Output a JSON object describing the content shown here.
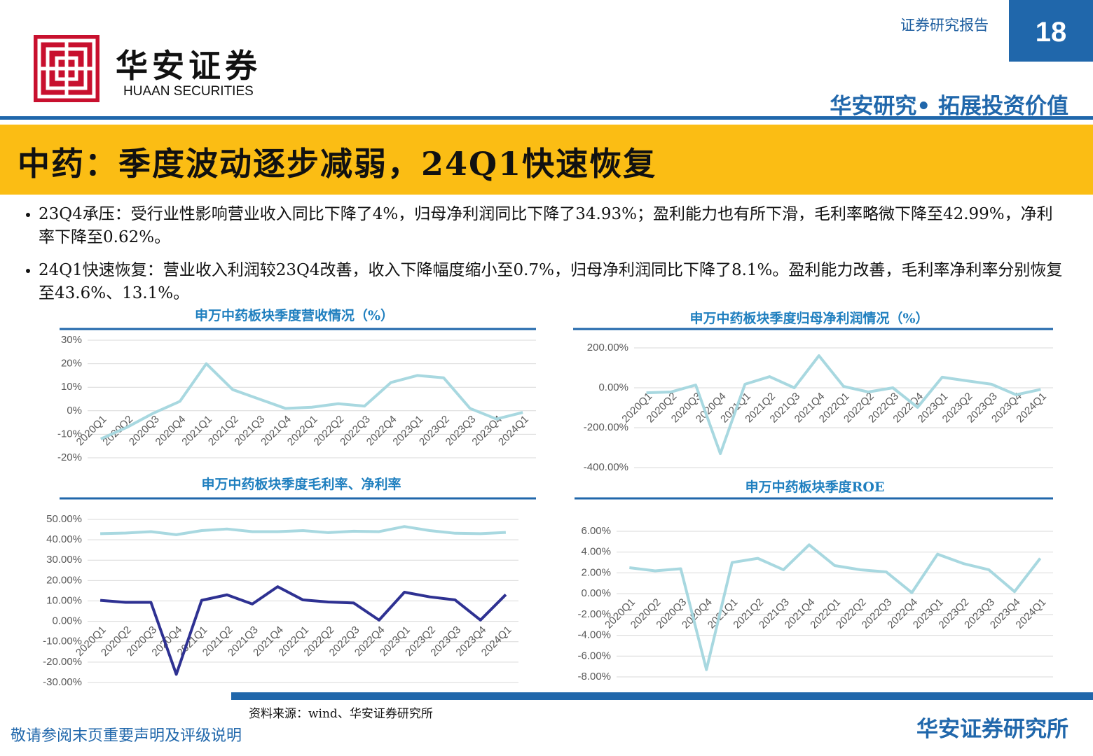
{
  "header": {
    "report_type": "证券研究报告",
    "page": "18",
    "logo_cn": "华安证券",
    "logo_en": "HUAAN SECURITIES",
    "slogan": "华安研究• 拓展投资价值"
  },
  "title": "中药：季度波动逐步减弱，24Q1快速恢复",
  "bullets": [
    "23Q4承压：受行业性影响营业收入同比下降了4%，归母净利润同比下降了34.93%；盈利能力也有所下滑，毛利率略微下降至42.99%，净利率下降至0.62%。",
    "24Q1快速恢复：营业收入利润较23Q4改善，收入下降幅度缩小至0.7%，归母净利润同比下降了8.1%。盈利能力改善，毛利率净利率分别恢复至43.6%、13.1%。"
  ],
  "chart_data": [
    {
      "type": "line",
      "title": "申万中药板块季度营收情况（%）",
      "grid": true,
      "categories": [
        "2020Q1",
        "2020Q2",
        "2020Q3",
        "2020Q4",
        "2021Q1",
        "2021Q2",
        "2021Q3",
        "2021Q4",
        "2022Q1",
        "2022Q2",
        "2022Q3",
        "2022Q4",
        "2023Q1",
        "2023Q2",
        "2023Q3",
        "2023Q4",
        "2024Q1"
      ],
      "series": [
        {
          "color": "#a8d8e0",
          "values": [
            -12,
            -7,
            -1,
            4,
            20,
            9,
            5,
            1,
            1.5,
            3,
            2,
            12,
            15,
            14,
            1,
            -3.5,
            -0.7
          ]
        }
      ],
      "ylim": [
        -20,
        30
      ],
      "yticks": [
        {
          "value": -20,
          "label": "-20%"
        },
        {
          "value": -10,
          "label": "-10%"
        },
        {
          "value": 0,
          "label": "0%"
        },
        {
          "value": 10,
          "label": "10%"
        },
        {
          "value": 20,
          "label": "20%"
        },
        {
          "value": 30,
          "label": "30%"
        }
      ]
    },
    {
      "type": "line",
      "title": "申万中药板块季度归母净利润情况（%）",
      "grid": true,
      "categories": [
        "2020Q1",
        "2020Q2",
        "2020Q3",
        "2020Q4",
        "2021Q1",
        "2021Q2",
        "2021Q3",
        "2021Q4",
        "2022Q1",
        "2022Q2",
        "2022Q3",
        "2022Q4",
        "2023Q1",
        "2023Q2",
        "2023Q3",
        "2023Q4",
        "2024Q1"
      ],
      "series": [
        {
          "color": "#a8d8e0",
          "values": [
            -25,
            -21,
            14,
            -330,
            18,
            56,
            0,
            161,
            7,
            -21,
            0,
            -98,
            53,
            35,
            18,
            -34.93,
            -8.1
          ]
        }
      ],
      "ylim": [
        -400,
        200
      ],
      "yticks": [
        {
          "value": -400,
          "label": "-400.00%"
        },
        {
          "value": -200,
          "label": "-200.00%"
        },
        {
          "value": 0,
          "label": "0.00%"
        },
        {
          "value": 200,
          "label": "200.00%"
        }
      ]
    },
    {
      "type": "line",
      "title": "申万中药板块季度毛利率、净利率",
      "grid": true,
      "categories": [
        "2020Q1",
        "2020Q2",
        "2020Q3",
        "2020Q4",
        "2021Q1",
        "2021Q2",
        "2021Q3",
        "2021Q4",
        "2022Q1",
        "2022Q2",
        "2022Q3",
        "2022Q4",
        "2023Q1",
        "2023Q2",
        "2023Q3",
        "2023Q4",
        "2024Q1"
      ],
      "series": [
        {
          "color": "#a8d8e0",
          "values": [
            43,
            43.3,
            44,
            42.5,
            44.5,
            45.3,
            44,
            44,
            44.5,
            43.5,
            44.2,
            44,
            46.5,
            44.5,
            43.2,
            42.99,
            43.6
          ]
        },
        {
          "color": "#2e3192",
          "values": [
            10.3,
            9.3,
            9.3,
            -26,
            10.3,
            13,
            8.5,
            17,
            10.5,
            9.5,
            9,
            0.6,
            14.3,
            12,
            10.5,
            0.62,
            13.1
          ]
        }
      ],
      "ylim": [
        -30,
        50
      ],
      "yticks": [
        {
          "value": -30,
          "label": "-30.00%"
        },
        {
          "value": -20,
          "label": "-20.00%"
        },
        {
          "value": -10,
          "label": "-10.00%"
        },
        {
          "value": 0,
          "label": "0.00%"
        },
        {
          "value": 10,
          "label": "10.00%"
        },
        {
          "value": 20,
          "label": "20.00%"
        },
        {
          "value": 30,
          "label": "30.00%"
        },
        {
          "value": 40,
          "label": "40.00%"
        },
        {
          "value": 50,
          "label": "50.00%"
        }
      ]
    },
    {
      "type": "line",
      "title": "申万中药板块季度ROE",
      "grid": true,
      "categories": [
        "2020Q1",
        "2020Q2",
        "2020Q3",
        "2020Q4",
        "2021Q1",
        "2021Q2",
        "2021Q3",
        "2021Q4",
        "2022Q1",
        "2022Q2",
        "2022Q3",
        "2022Q4",
        "2023Q1",
        "2023Q2",
        "2023Q3",
        "2023Q4",
        "2024Q1"
      ],
      "series": [
        {
          "color": "#a8d8e0",
          "values": [
            2.5,
            2.2,
            2.4,
            -7.3,
            3.0,
            3.4,
            2.3,
            4.7,
            2.7,
            2.3,
            2.1,
            0.1,
            3.8,
            2.9,
            2.3,
            0.2,
            3.4
          ]
        }
      ],
      "ylim": [
        -8,
        6
      ],
      "yticks": [
        {
          "value": -8,
          "label": "-8.00%"
        },
        {
          "value": -6,
          "label": "-6.00%"
        },
        {
          "value": -4,
          "label": "-4.00%"
        },
        {
          "value": -2,
          "label": "-2.00%"
        },
        {
          "value": 0,
          "label": "0.00%"
        },
        {
          "value": 2,
          "label": "2.00%"
        },
        {
          "value": 4,
          "label": "4.00%"
        },
        {
          "value": 6,
          "label": "6.00%"
        }
      ]
    }
  ],
  "source": "资料来源：wind、华安证券研究所",
  "footer": {
    "disclaimer": "敬请参阅末页重要声明及评级说明",
    "org": "华安证券研究所"
  }
}
